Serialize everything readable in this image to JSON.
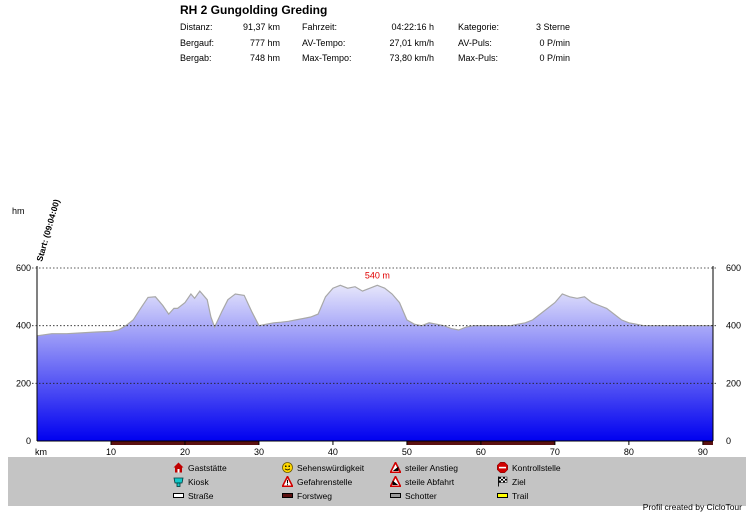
{
  "header": {
    "title": "RH 2 Gungolding Greding",
    "stats": [
      {
        "label": "Distanz:",
        "value": "91,37 km"
      },
      {
        "label": "Bergauf:",
        "value": "777 hm"
      },
      {
        "label": "Bergab:",
        "value": "748 hm"
      },
      {
        "label": "Fahrzeit:",
        "value": "04:22:16 h"
      },
      {
        "label": "AV-Tempo:",
        "value": "27,01 km/h"
      },
      {
        "label": "Max-Tempo:",
        "value": "73,80 km/h"
      },
      {
        "label": "Kategorie:",
        "value": "3 Sterne"
      },
      {
        "label": "AV-Puls:",
        "value": "0 P/min"
      },
      {
        "label": "Max-Puls:",
        "value": "0 P/min"
      }
    ]
  },
  "legend": {
    "items": [
      {
        "label": "Gaststätte",
        "icon": "house-icon"
      },
      {
        "label": "Kiosk",
        "icon": "kiosk-icon"
      },
      {
        "label": "Straße",
        "icon": "road-swatch-icon"
      },
      {
        "label": "Sehenswürdigkeit",
        "icon": "smiley-icon"
      },
      {
        "label": "Gefahrenstelle",
        "icon": "warning-icon"
      },
      {
        "label": "Forstweg",
        "icon": "forest-track-swatch-icon"
      },
      {
        "label": "steiler Anstieg",
        "icon": "steep-climb-icon"
      },
      {
        "label": "steile Abfahrt",
        "icon": "steep-descent-icon"
      },
      {
        "label": "Schotter",
        "icon": "gravel-swatch-icon"
      },
      {
        "label": "Kontrollstelle",
        "icon": "stop-sign-icon"
      },
      {
        "label": "Ziel",
        "icon": "finish-flag-icon"
      },
      {
        "label": "Trail",
        "icon": "trail-swatch-icon"
      }
    ]
  },
  "credit": "Profil created by CicloTour",
  "colors": {
    "fill_top": "#e6e6fb",
    "fill_bottom": "#0000f0",
    "profile_line": "#a8a8a8",
    "peak_label": "#e00000",
    "legend_bg": "#c4c4c4",
    "surface_road": "#ffffff",
    "surface_forest": "#5a1010",
    "surface_gravel": "#9a9a9a",
    "surface_trail": "#ffff00"
  },
  "chart_data": {
    "type": "area",
    "ylabel": "hm",
    "xlabel": "km",
    "xlim": [
      0,
      91.37
    ],
    "ylim": [
      0,
      600
    ],
    "x_ticks": [
      "10",
      "20",
      "30",
      "40",
      "50",
      "60",
      "70",
      "80",
      "90"
    ],
    "y_ticks": [
      "0",
      "200",
      "400",
      "600"
    ],
    "grid": "dotted at 400 and 600",
    "start_annotation": "Start: (09:04:00)",
    "peak_label": "540 m",
    "peak_km": 46,
    "surface_bar": {
      "surface_types": [
        "Straße",
        "Forstweg"
      ],
      "segments": [
        {
          "from": 0,
          "to": 10,
          "surface": "Straße"
        },
        {
          "from": 10,
          "to": 30,
          "surface": "Forstweg"
        },
        {
          "from": 30,
          "to": 50,
          "surface": "Straße"
        },
        {
          "from": 50,
          "to": 70,
          "surface": "Forstweg"
        },
        {
          "from": 70,
          "to": 90,
          "surface": "Straße"
        },
        {
          "from": 90,
          "to": 91.37,
          "surface": "Forstweg"
        }
      ]
    },
    "series": [
      {
        "x": [
          0,
          2,
          4,
          6,
          8,
          10,
          11,
          12,
          13,
          14,
          15,
          16,
          17,
          17.8,
          18.5,
          19,
          20,
          20.8,
          21.3,
          22,
          23,
          23.5,
          24,
          25,
          25.8,
          26.3,
          26.8,
          28,
          29,
          30,
          31,
          32,
          33,
          34,
          35,
          36,
          37,
          38,
          39,
          40,
          41,
          42,
          43,
          44,
          45,
          46,
          47,
          48,
          49,
          50,
          51,
          52,
          53,
          54,
          55,
          56,
          57,
          58,
          59,
          60,
          61,
          62,
          63,
          64,
          65,
          66,
          67,
          68,
          69,
          70,
          71,
          72,
          73,
          74,
          75,
          76,
          77,
          78,
          79,
          80,
          81,
          82,
          83,
          84,
          85,
          86,
          87,
          88,
          89,
          90,
          91.37
        ],
        "y": [
          365,
          372,
          372,
          375,
          378,
          380,
          385,
          400,
          420,
          460,
          498,
          500,
          470,
          440,
          460,
          460,
          480,
          510,
          495,
          520,
          490,
          430,
          395,
          450,
          490,
          500,
          510,
          505,
          450,
          400,
          405,
          410,
          412,
          415,
          420,
          425,
          430,
          440,
          500,
          530,
          540,
          530,
          535,
          520,
          530,
          540,
          530,
          510,
          480,
          420,
          405,
          400,
          410,
          405,
          400,
          390,
          385,
          395,
          400,
          400,
          400,
          400,
          400,
          400,
          405,
          410,
          420,
          440,
          460,
          480,
          510,
          500,
          495,
          500,
          480,
          470,
          460,
          440,
          420,
          410,
          405,
          400,
          400,
          400,
          400,
          400,
          400,
          400,
          400,
          400,
          400
        ]
      }
    ]
  }
}
